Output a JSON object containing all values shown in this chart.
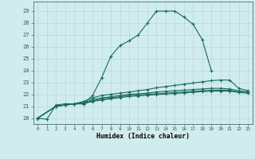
{
  "xlabel": "Humidex (Indice chaleur)",
  "xlim": [
    -0.5,
    23.5
  ],
  "ylim": [
    19.5,
    29.8
  ],
  "xticks": [
    0,
    1,
    2,
    3,
    4,
    5,
    6,
    7,
    8,
    9,
    10,
    11,
    12,
    13,
    14,
    15,
    16,
    17,
    18,
    19,
    20,
    21,
    22,
    23
  ],
  "yticks": [
    20,
    21,
    22,
    23,
    24,
    25,
    26,
    27,
    28,
    29
  ],
  "bg_color": "#d0ecec",
  "line_color": "#1a6b5a",
  "grid_color": "#b8d8d8",
  "figsize": [
    3.2,
    2.0
  ],
  "dpi": 100,
  "series": [
    [
      20.0,
      19.9,
      21.1,
      21.2,
      21.2,
      21.2,
      21.9,
      23.4,
      25.2,
      26.1,
      26.5,
      27.0,
      28.0,
      29.0,
      29.0,
      29.0,
      28.5,
      27.9,
      26.6,
      24.0,
      null,
      null,
      null,
      null
    ],
    [
      20.0,
      null,
      21.0,
      21.1,
      21.2,
      21.4,
      21.7,
      21.9,
      22.0,
      22.1,
      22.2,
      22.3,
      22.4,
      22.55,
      22.65,
      22.75,
      22.85,
      22.95,
      23.05,
      23.15,
      23.2,
      23.2,
      22.5,
      22.3
    ],
    [
      20.0,
      null,
      21.0,
      21.1,
      21.2,
      21.3,
      21.55,
      21.7,
      21.8,
      21.9,
      22.0,
      22.05,
      22.1,
      22.2,
      22.25,
      22.3,
      22.35,
      22.4,
      22.45,
      22.5,
      22.5,
      22.45,
      22.3,
      22.2
    ],
    [
      20.0,
      null,
      21.0,
      21.1,
      21.2,
      21.25,
      21.45,
      21.6,
      21.7,
      21.8,
      21.9,
      21.95,
      22.0,
      22.05,
      22.1,
      22.15,
      22.2,
      22.25,
      22.3,
      22.35,
      22.35,
      22.35,
      22.2,
      22.15
    ],
    [
      20.0,
      null,
      21.0,
      21.1,
      21.2,
      21.2,
      21.4,
      21.52,
      21.62,
      21.72,
      21.82,
      21.87,
      21.92,
      21.97,
      22.02,
      22.07,
      22.12,
      22.17,
      22.22,
      22.27,
      22.27,
      22.27,
      22.15,
      22.1
    ]
  ]
}
